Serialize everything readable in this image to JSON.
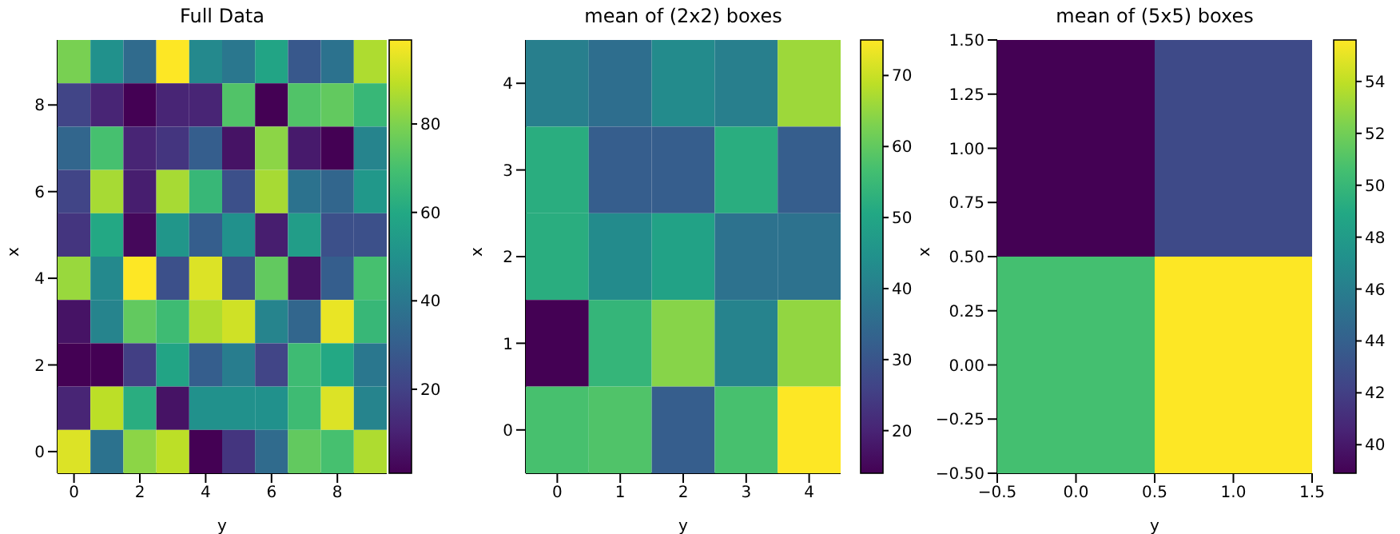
{
  "chart_data": [
    {
      "type": "heatmap",
      "title": "Full Data",
      "xlabel": "y",
      "ylabel": "x",
      "xlim": [
        -0.5,
        9.5
      ],
      "ylim": [
        -0.5,
        9.5
      ],
      "xticks": [
        0,
        2,
        4,
        6,
        8
      ],
      "yticks": [
        0,
        2,
        4,
        6,
        8
      ],
      "clim": [
        1,
        99
      ],
      "cticks": [
        20,
        40,
        60,
        80
      ],
      "cells": [
        [
          79,
          50,
          35,
          99,
          47,
          40,
          58,
          28,
          38,
          87
        ],
        [
          21,
          11,
          1,
          11,
          11,
          72,
          1,
          72,
          75,
          66
        ],
        [
          33,
          70,
          11,
          16,
          30,
          6,
          82,
          8,
          1,
          45
        ],
        [
          21,
          86,
          9,
          86,
          66,
          25,
          86,
          38,
          33,
          53
        ],
        [
          16,
          60,
          3,
          52,
          30,
          50,
          9,
          55,
          25,
          25
        ],
        [
          84,
          47,
          99,
          25,
          94,
          25,
          75,
          6,
          30,
          70
        ],
        [
          6,
          45,
          75,
          68,
          87,
          92,
          45,
          33,
          96,
          66
        ],
        [
          1,
          1,
          19,
          58,
          30,
          42,
          21,
          68,
          60,
          40
        ],
        [
          11,
          89,
          62,
          6,
          50,
          50,
          50,
          68,
          94,
          45
        ],
        [
          94,
          38,
          82,
          89,
          1,
          16,
          35,
          75,
          70,
          87
        ]
      ]
    },
    {
      "type": "heatmap",
      "title": "mean of (2x2) boxes",
      "xlabel": "y",
      "ylabel": "x",
      "xlim": [
        -0.5,
        4.5
      ],
      "ylim": [
        -0.5,
        4.5
      ],
      "xticks": [
        0,
        1,
        2,
        3,
        4
      ],
      "yticks": [
        0,
        1,
        2,
        3,
        4
      ],
      "clim": [
        14,
        75
      ],
      "cticks": [
        20,
        30,
        40,
        50,
        60,
        70
      ],
      "cells": [
        [
          40,
          36,
          43,
          40,
          66
        ],
        [
          52,
          32,
          32,
          52,
          32
        ],
        [
          52,
          43,
          49,
          37,
          37
        ],
        [
          14,
          54,
          64,
          41,
          65
        ],
        [
          57,
          58,
          32,
          57,
          75
        ]
      ]
    },
    {
      "type": "heatmap",
      "title": "mean of (5x5) boxes",
      "xlabel": "y",
      "ylabel": "x",
      "xlim": [
        -0.5,
        1.5
      ],
      "ylim": [
        -0.5,
        1.5
      ],
      "xticks": [
        {
          "value": -0.5,
          "label": "−0.5"
        },
        {
          "value": 0,
          "label": "0.0"
        },
        {
          "value": 0.5,
          "label": "0.5"
        },
        {
          "value": 1,
          "label": "1.0"
        },
        {
          "value": 1.5,
          "label": "1.5"
        }
      ],
      "yticks": [
        {
          "value": -0.5,
          "label": "−0.50"
        },
        {
          "value": -0.25,
          "label": "−0.25"
        },
        {
          "value": 0,
          "label": "0.00"
        },
        {
          "value": 0.25,
          "label": "0.25"
        },
        {
          "value": 0.5,
          "label": "0.50"
        },
        {
          "value": 0.75,
          "label": "0.75"
        },
        {
          "value": 1,
          "label": "1.00"
        },
        {
          "value": 1.25,
          "label": "1.25"
        },
        {
          "value": 1.5,
          "label": "1.50"
        }
      ],
      "clim": [
        38.9,
        55.6
      ],
      "cticks": [
        40,
        42,
        44,
        46,
        48,
        50,
        52,
        54
      ],
      "cells": [
        [
          38.9,
          42.6
        ],
        [
          50.6,
          55.6
        ]
      ]
    }
  ]
}
